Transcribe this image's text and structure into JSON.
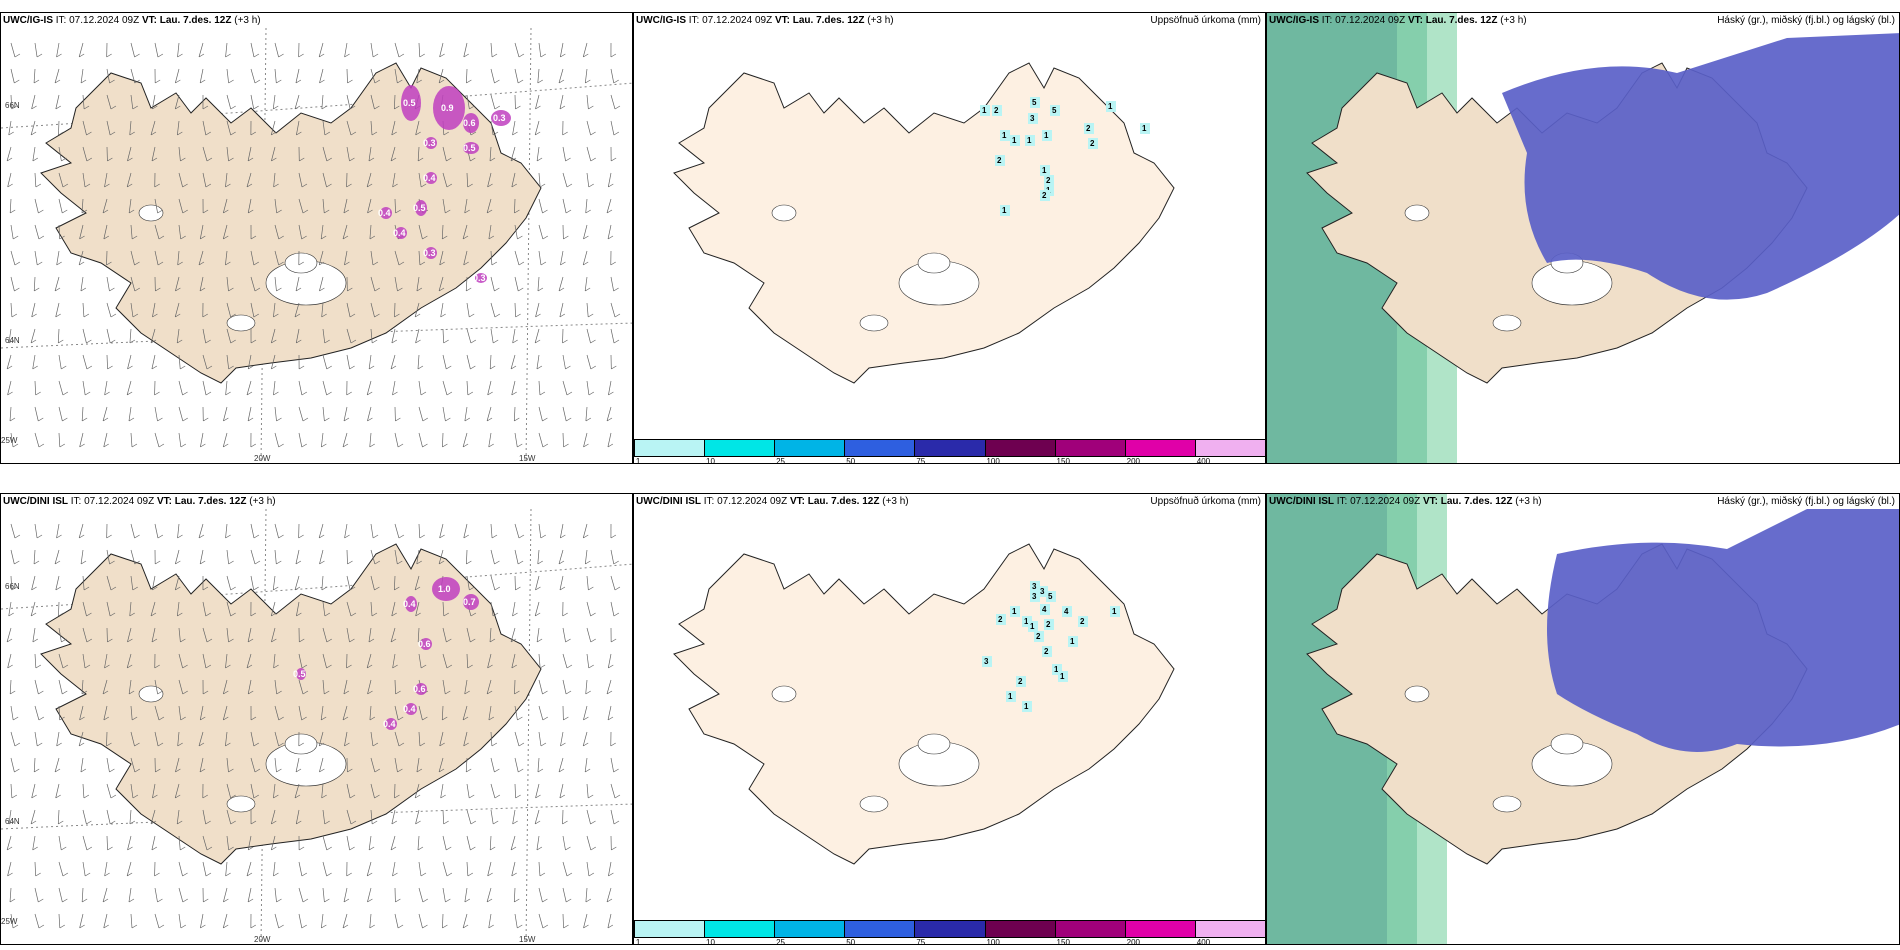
{
  "panels": {
    "p1": {
      "model": "UWC/IG-IS",
      "it_label": "IT:",
      "it": "07.12.2024 09Z",
      "vt_label": "VT:",
      "vt": "Lau. 7.des. 12Z",
      "lead": "(+3 h)",
      "right": ""
    },
    "p2": {
      "model": "UWC/IG-IS",
      "it_label": "IT:",
      "it": "07.12.2024 09Z",
      "vt_label": "VT:",
      "vt": "Lau. 7.des. 12Z",
      "lead": "(+3 h)",
      "right": "Uppsöfnuð úrkoma (mm)"
    },
    "p3": {
      "model": "UWC/IG-IS",
      "it_label": "IT:",
      "it": "07.12.2024 09Z",
      "vt_label": "VT:",
      "vt": "Lau. 7.des. 12Z",
      "lead": "(+3 h)",
      "right": "Háský (gr.), miðský (fj.bl.) og lágský (bl.)"
    },
    "p4": {
      "model": "UWC/DINI ISL",
      "it_label": "IT:",
      "it": "07.12.2024 09Z",
      "vt_label": "VT:",
      "vt": "Lau. 7.des. 12Z",
      "lead": "(+3 h)",
      "right": ""
    },
    "p5": {
      "model": "UWC/DINI ISL",
      "it_label": "IT:",
      "it": "07.12.2024 09Z",
      "vt_label": "VT:",
      "vt": "Lau. 7.des. 12Z",
      "lead": "(+3 h)",
      "right": "Uppsöfnuð úrkoma (mm)"
    },
    "p6": {
      "model": "UWC/DINI ISL",
      "it_label": "IT:",
      "it": "07.12.2024 09Z",
      "vt_label": "VT:",
      "vt": "Lau. 7.des. 12Z",
      "lead": "(+3 h)",
      "right": "Háský (gr.), miðský (fj.bl.) og lágský (bl.)"
    }
  },
  "coords": {
    "lat66": "66N",
    "lat64": "64N",
    "lon25": "25W",
    "lon20": "20W",
    "lon15": "15W"
  },
  "legend": {
    "ticks": [
      "1",
      "10",
      "25",
      "50",
      "75",
      "100",
      "150",
      "200",
      "400"
    ],
    "colors": [
      "#b9f4f4",
      "#00e6e6",
      "#00b4e6",
      "#2e5fe0",
      "#2a2aaa",
      "#6e0050",
      "#a0007a",
      "#e000a8",
      "#f0b0f0"
    ]
  },
  "precip_values_top": [
    "1",
    "2",
    "5",
    "3",
    "5",
    "2",
    "2",
    "1",
    "1",
    "1",
    "1",
    "1",
    "1",
    "2",
    "1",
    "2",
    "1",
    "2",
    "1"
  ],
  "precip_values_bottom": [
    "3",
    "3",
    "3",
    "5",
    "4",
    "4",
    "2",
    "2",
    "1",
    "2",
    "1",
    "1",
    "1",
    "2",
    "2",
    "1",
    "1",
    "2",
    "3",
    "1",
    "1",
    "1"
  ],
  "snow_values_top": [
    "0.5",
    "0.9",
    "0.6",
    "0.3",
    "0.5",
    "0.3",
    "0.4",
    "0.5",
    "0.4",
    "0.3",
    "0.4",
    "0.3"
  ],
  "snow_values_bottom": [
    "1.0",
    "0.7",
    "0.4",
    "0.6",
    "0.6",
    "0.4",
    "0.5",
    "0.4"
  ],
  "colors": {
    "land": "#f0dfc9",
    "land_precip": "#fdf0e2",
    "cloud_high": "#5a6fd0",
    "sea_green": "#6fb8a0",
    "snow_purple": "#c040c0"
  }
}
